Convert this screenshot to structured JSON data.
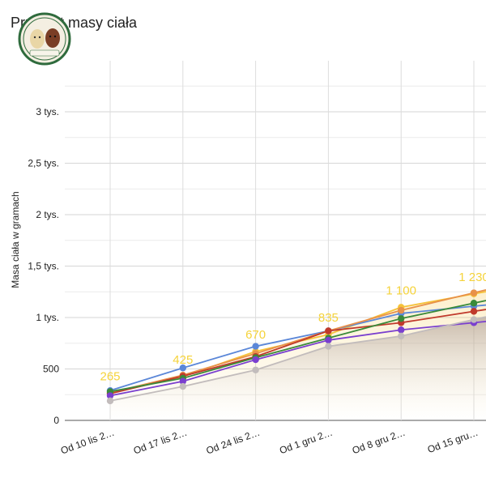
{
  "chart_data": {
    "type": "line",
    "title": "Przyrost masy ciała",
    "ylabel": "Masa ciała w gramach",
    "xlabel": "",
    "ylim": [
      0,
      3250
    ],
    "yticks": [
      {
        "value": 0,
        "label": "0"
      },
      {
        "value": 500,
        "label": "500"
      },
      {
        "value": 1000,
        "label": "1 tys."
      },
      {
        "value": 1500,
        "label": "1,5 tys."
      },
      {
        "value": 2000,
        "label": "2 tys."
      },
      {
        "value": 2500,
        "label": "2,5 tys."
      },
      {
        "value": 3000,
        "label": "3 tys."
      }
    ],
    "categories": [
      "Od 10 lis 2…",
      "Od 17 lis 2…",
      "Od 24 lis 2…",
      "Od 1 gru 2…",
      "Od 8 gru 2…",
      "Od 15 gru…"
    ],
    "data_labels": [
      "265",
      "425",
      "670",
      "835",
      "1 100",
      "1 230"
    ],
    "grid": true,
    "series": [
      {
        "color": "#f5c23a",
        "values": [
          265,
          425,
          670,
          835,
          1100,
          1230
        ],
        "fill": true
      },
      {
        "color": "#5b87d8",
        "values": [
          290,
          510,
          720,
          870,
          1040,
          1110
        ]
      },
      {
        "color": "#e8914a",
        "values": [
          270,
          440,
          650,
          870,
          1070,
          1240
        ]
      },
      {
        "color": "#c0392b",
        "values": [
          260,
          430,
          620,
          870,
          950,
          1060
        ]
      },
      {
        "color": "#3a8a3a",
        "values": [
          280,
          410,
          610,
          800,
          990,
          1140
        ]
      },
      {
        "color": "#7a3fcf",
        "values": [
          240,
          380,
          590,
          780,
          880,
          950
        ]
      },
      {
        "color": "#c2bcbc",
        "values": [
          190,
          330,
          490,
          720,
          820,
          980
        ],
        "fill": true
      }
    ]
  },
  "logo": {
    "text_top": "~ ~ ~",
    "text_bottom": "The Goldens & Poodle Puppies"
  }
}
